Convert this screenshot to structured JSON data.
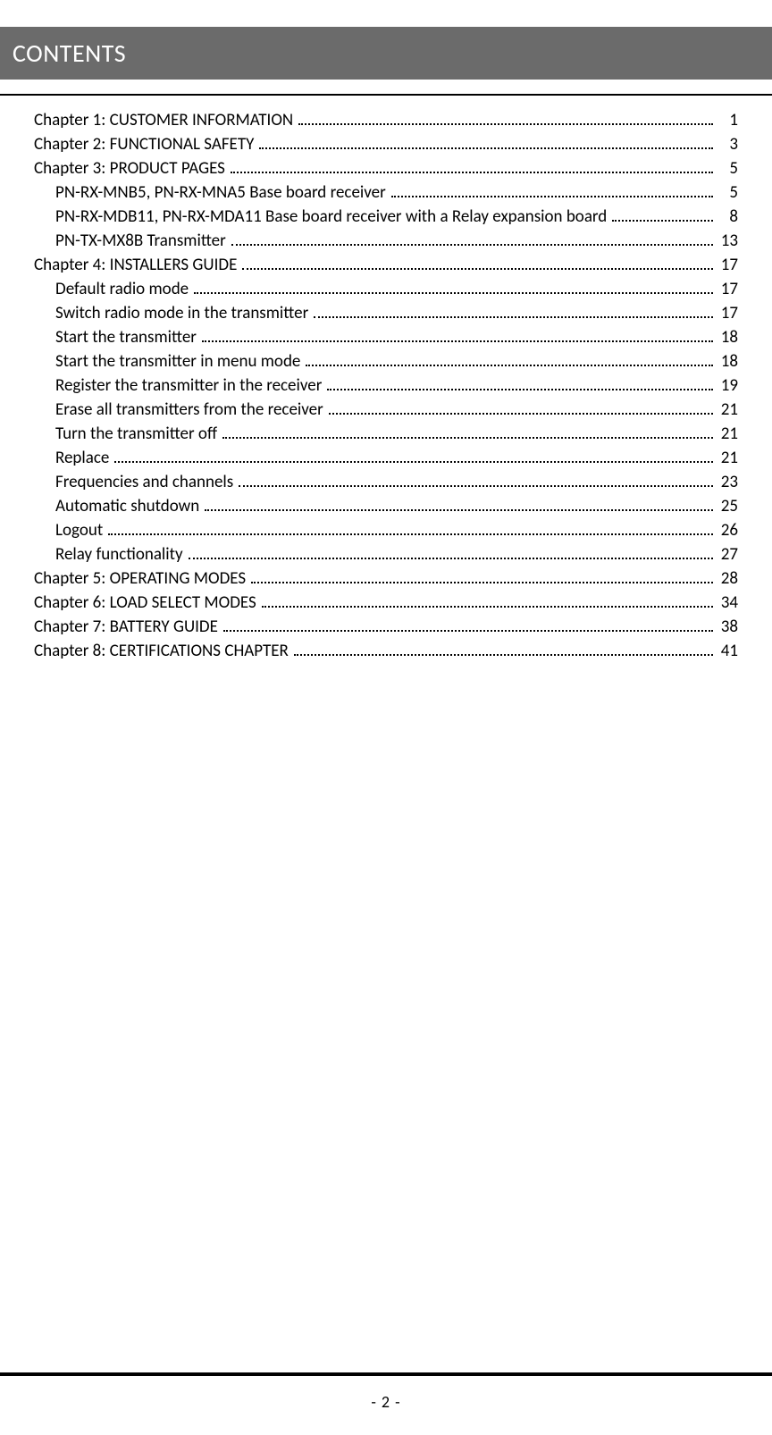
{
  "header": {
    "title": "CONTENTS"
  },
  "colors": {
    "header_bg": "#6b6b6b",
    "header_text": "#ffffff",
    "text": "#000000",
    "page_bg": "#ffffff"
  },
  "toc": [
    {
      "level": 1,
      "title": "Chapter 1: CUSTOMER INFORMATION",
      "page": "1"
    },
    {
      "level": 1,
      "title": "Chapter 2: FUNCTIONAL SAFETY",
      "page": "3"
    },
    {
      "level": 1,
      "title": "Chapter 3: PRODUCT PAGES",
      "page": "5"
    },
    {
      "level": 2,
      "title": "PN-RX-MNB5, PN-RX-MNA5 Base board receiver",
      "page": "5"
    },
    {
      "level": 2,
      "title": "PN-RX-MDB11, PN-RX-MDA11 Base board receiver with a Relay expansion board",
      "page": "8"
    },
    {
      "level": 2,
      "title": "PN-TX-MX8B Transmitter",
      "page": "13"
    },
    {
      "level": 1,
      "title": "Chapter 4: INSTALLERS GUIDE",
      "page": "17"
    },
    {
      "level": 2,
      "title": "Default radio mode",
      "page": "17"
    },
    {
      "level": 2,
      "title": "Switch radio mode in the transmitter",
      "page": "17"
    },
    {
      "level": 2,
      "title": "Start the transmitter",
      "page": "18"
    },
    {
      "level": 2,
      "title": "Start the transmitter in menu mode",
      "page": "18"
    },
    {
      "level": 2,
      "title": "Register the transmitter in the receiver",
      "page": "19"
    },
    {
      "level": 2,
      "title": "Erase all transmitters from the receiver",
      "page": "21"
    },
    {
      "level": 2,
      "title": "Turn the transmitter off",
      "page": "21"
    },
    {
      "level": 2,
      "title": "Replace",
      "page": "21"
    },
    {
      "level": 2,
      "title": "Frequencies and channels",
      "page": "23"
    },
    {
      "level": 2,
      "title": "Automatic shutdown",
      "page": "25"
    },
    {
      "level": 2,
      "title": "Logout",
      "page": "26"
    },
    {
      "level": 2,
      "title": "Relay functionality",
      "page": "27"
    },
    {
      "level": 1,
      "title": "Chapter 5: OPERATING MODES",
      "page": "28"
    },
    {
      "level": 1,
      "title": "Chapter 6: LOAD SELECT MODES",
      "page": "34"
    },
    {
      "level": 1,
      "title": "Chapter 7: BATTERY GUIDE",
      "page": "38"
    },
    {
      "level": 1,
      "title": "Chapter 8: CERTIFICATIONS CHAPTER",
      "page": "41"
    }
  ],
  "footer": {
    "page_number": "- 2 -"
  }
}
